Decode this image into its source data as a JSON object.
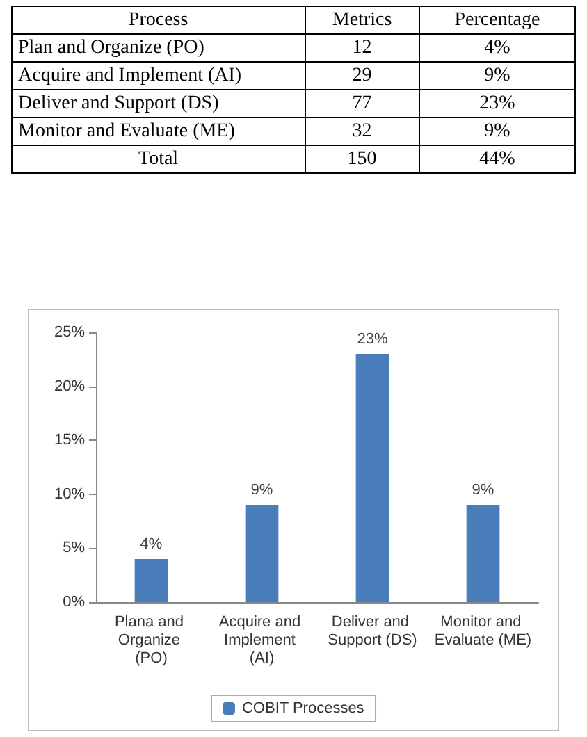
{
  "chart_data": [
    {
      "type": "other",
      "annotations": [
        "Process",
        "Metrics",
        "Percentage",
        "Plan and Organize (PO)",
        "12",
        "4%",
        "Acquire and Implement (AI)",
        "29",
        "9%",
        "Deliver and Support (DS)",
        "77",
        "23%",
        "Monitor and Evaluate (ME)",
        "32",
        "9%",
        "Total",
        "150",
        "44%"
      ]
    },
    {
      "type": "bar",
      "categories": [
        "Plana and Organize (PO)",
        "Acquire and Implement (AI)",
        "Deliver and Support (DS)",
        "Monitor and Evaluate (ME)"
      ],
      "series": [
        {
          "name": "COBIT Processes",
          "color": "#4a7ebb",
          "values": [
            4,
            9,
            23,
            9
          ],
          "value_labels": [
            "4%",
            "9%",
            "23%",
            "9%"
          ]
        }
      ],
      "ylim": [
        0,
        25
      ],
      "yticks": [
        {
          "value": 0,
          "label": "0%"
        },
        {
          "value": 5,
          "label": "5%"
        },
        {
          "value": 10,
          "label": "10%"
        },
        {
          "value": 15,
          "label": "15%"
        },
        {
          "value": 20,
          "label": "20%"
        },
        {
          "value": 25,
          "label": "25%"
        }
      ],
      "grid": false,
      "legend": "bottom"
    }
  ]
}
